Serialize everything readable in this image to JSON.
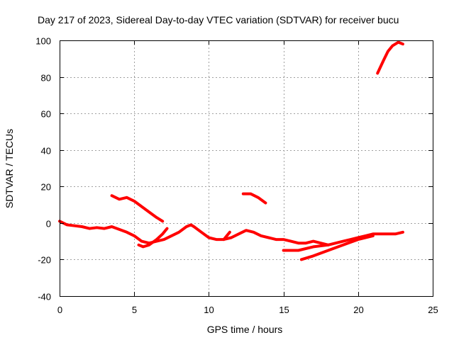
{
  "chart_data": {
    "type": "line",
    "title": "Day 217 of 2023, Sidereal Day-to-day VTEC variation (SDTVAR) for receiver bucu",
    "xlabel": "GPS time / hours",
    "ylabel": "SDTVAR / TECUs",
    "xlim": [
      0,
      25
    ],
    "ylim": [
      -40,
      100
    ],
    "xticks": [
      "0",
      "5",
      "10",
      "15",
      "20",
      "25"
    ],
    "yticks": [
      "100",
      "80",
      "60",
      "40",
      "20",
      "0",
      "-20",
      "-40"
    ],
    "grid": true,
    "series_color": "#ff0000",
    "series": [
      {
        "name": "trace-1",
        "x": [
          0,
          0.5,
          1,
          1.5,
          2,
          2.5,
          3,
          3.5,
          4,
          4.5,
          5,
          5.5,
          6,
          6.5,
          7,
          7.5,
          8,
          8.5,
          8.8,
          9,
          9.5,
          10,
          10.5,
          11,
          11.5,
          12,
          12.5,
          13,
          13.5,
          14,
          14.5,
          15,
          15.5,
          16,
          16.5,
          17,
          17.5,
          18,
          18.5,
          19,
          19.5,
          20,
          20.5,
          21,
          21.5,
          22,
          22.5,
          23
        ],
        "y": [
          1,
          -1,
          -1.5,
          -2,
          -3,
          -2.5,
          -3,
          -2,
          -3.5,
          -5,
          -7,
          -10,
          -11,
          -10,
          -9,
          -7,
          -5,
          -2,
          -1,
          -2,
          -5,
          -8,
          -9,
          -9,
          -8,
          -6,
          -4,
          -5,
          -7,
          -8,
          -9,
          -9,
          -10,
          -11,
          -11,
          -10,
          -11,
          -12,
          -11,
          -10,
          -9,
          -8,
          -7,
          -6,
          -6,
          -6,
          -6,
          -5
        ]
      },
      {
        "name": "trace-2",
        "x": [
          5.3,
          5.6,
          6,
          6.5,
          6.9,
          7.2
        ],
        "y": [
          -12,
          -13,
          -12,
          -9,
          -6,
          -3
        ]
      },
      {
        "name": "trace-3",
        "x": [
          11,
          11.4
        ],
        "y": [
          -9,
          -5
        ]
      },
      {
        "name": "trace-4",
        "x": [
          3.5,
          4,
          4.5,
          5,
          5.5,
          6,
          6.5,
          6.9
        ],
        "y": [
          15,
          13,
          14,
          12,
          9,
          6,
          3,
          1
        ]
      },
      {
        "name": "trace-5",
        "x": [
          12.3,
          12.8,
          13.3,
          13.8
        ],
        "y": [
          16,
          16,
          14,
          11
        ]
      },
      {
        "name": "trace-6",
        "x": [
          15,
          16,
          17,
          18
        ],
        "y": [
          -15,
          -15,
          -13,
          -12
        ]
      },
      {
        "name": "trace-7",
        "x": [
          16.2,
          17,
          18,
          19,
          20,
          21
        ],
        "y": [
          -20,
          -18,
          -15,
          -12,
          -9,
          -7
        ]
      },
      {
        "name": "trace-8",
        "x": [
          21.3,
          21.7,
          22,
          22.3,
          22.7,
          23
        ],
        "y": [
          82,
          89,
          94,
          97,
          99,
          98
        ]
      }
    ]
  }
}
